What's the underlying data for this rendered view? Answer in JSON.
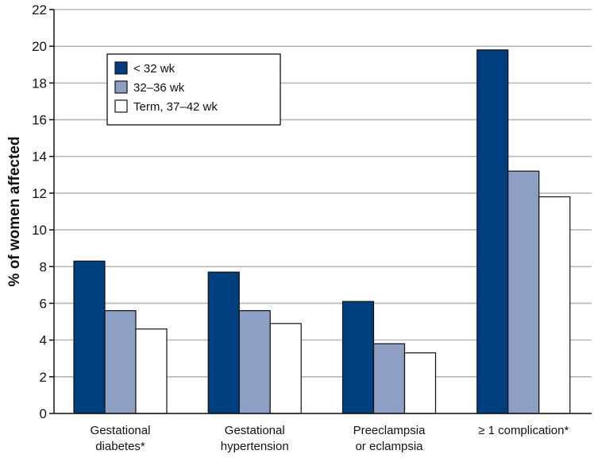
{
  "chart_data": {
    "type": "bar",
    "title": "",
    "xlabel": "",
    "ylabel": "% of women affected",
    "ylim": [
      0,
      22
    ],
    "yticks": [
      0,
      2,
      4,
      6,
      8,
      10,
      12,
      14,
      16,
      18,
      20,
      22
    ],
    "grid": true,
    "legend_position": "top-left",
    "categories": [
      [
        "Gestational",
        "diabetes*"
      ],
      [
        "Gestational",
        "hypertension"
      ],
      [
        "Preeclampsia",
        "or eclampsia"
      ],
      [
        "≥ 1 complication*"
      ]
    ],
    "series": [
      {
        "name": "< 32 wk",
        "color": "#003f7f",
        "values": [
          8.3,
          7.7,
          6.1,
          19.8
        ]
      },
      {
        "name": "32–36 wk",
        "color": "#8e9fc6",
        "values": [
          5.6,
          5.6,
          3.8,
          13.2
        ]
      },
      {
        "name": "Term, 37–42 wk",
        "color": "#ffffff",
        "values": [
          4.6,
          4.9,
          3.3,
          11.8
        ]
      }
    ]
  }
}
